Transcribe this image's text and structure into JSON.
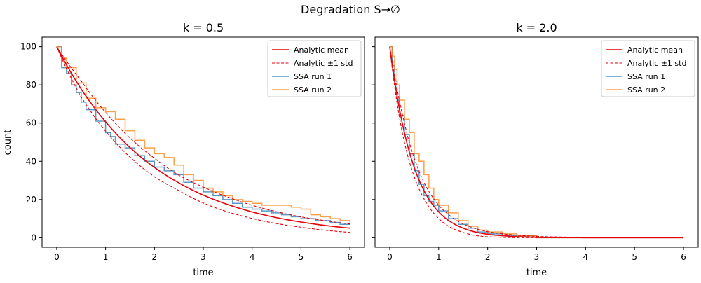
{
  "figure": {
    "suptitle": "Degradation S→∅"
  },
  "chart_data": [
    {
      "type": "line",
      "title": "k = 0.5",
      "k": 0.5,
      "xlabel": "time",
      "ylabel": "count",
      "xlim": [
        -0.3,
        6.3
      ],
      "ylim": [
        -5,
        105
      ],
      "xticks": [
        0,
        1,
        2,
        3,
        4,
        5,
        6
      ],
      "yticks": [
        0,
        20,
        40,
        60,
        80,
        100
      ],
      "legend": {
        "placement": "upper right",
        "entries": [
          "Analytic mean",
          "Analytic ±1 std",
          "SSA run 1",
          "SSA run 2"
        ]
      },
      "series": [
        {
          "name": "Analytic mean",
          "kind": "analytic-mean",
          "x": [
            0,
            0.5,
            1,
            1.5,
            2,
            2.5,
            3,
            3.5,
            4,
            4.5,
            5,
            5.5,
            6
          ],
          "values": [
            100,
            77.9,
            60.7,
            47.2,
            36.8,
            28.7,
            22.3,
            17.4,
            13.5,
            10.5,
            8.2,
            6.4,
            5.0
          ]
        },
        {
          "name": "Analytic ±1 std",
          "kind": "analytic-std-upper",
          "x": [
            0,
            0.5,
            1,
            1.5,
            2,
            2.5,
            3,
            3.5,
            4,
            4.5,
            5,
            5.5,
            6
          ],
          "values": [
            100,
            82.1,
            65.6,
            52.2,
            41.6,
            32.7,
            26.5,
            21.3,
            17.0,
            13.6,
            10.9,
            8.9,
            7.2
          ]
        },
        {
          "name": "Analytic ±1 std",
          "kind": "analytic-std-lower",
          "x": [
            0,
            0.5,
            1,
            1.5,
            2,
            2.5,
            3,
            3.5,
            4,
            4.5,
            5,
            5.5,
            6
          ],
          "values": [
            100,
            73.7,
            55.8,
            42.2,
            31.9,
            24.7,
            18.2,
            13.5,
            10.1,
            7.4,
            5.5,
            3.9,
            2.8
          ]
        },
        {
          "name": "SSA run 1",
          "kind": "ssa-1",
          "x": [
            0,
            0.1,
            0.2,
            0.3,
            0.4,
            0.5,
            0.6,
            0.8,
            1.0,
            1.1,
            1.2,
            1.4,
            1.6,
            1.8,
            2.0,
            2.2,
            2.4,
            2.6,
            2.8,
            3.0,
            3.2,
            3.4,
            3.6,
            3.8,
            4.0,
            4.2,
            4.4,
            4.6,
            4.8,
            5.0,
            5.3,
            5.6,
            5.8,
            6.0
          ],
          "values": [
            100,
            89,
            86,
            80,
            76,
            71,
            67,
            61,
            55,
            53,
            49,
            47,
            43,
            40,
            37,
            35,
            33,
            29,
            26,
            24,
            22,
            20,
            18,
            16,
            15,
            14,
            13,
            12,
            11,
            10,
            9,
            8,
            7,
            7
          ]
        },
        {
          "name": "SSA run 2",
          "kind": "ssa-2",
          "x": [
            0,
            0.1,
            0.2,
            0.4,
            0.6,
            0.8,
            1.0,
            1.2,
            1.4,
            1.6,
            1.8,
            2.0,
            2.2,
            2.4,
            2.6,
            2.8,
            3.0,
            3.2,
            3.4,
            3.6,
            3.8,
            4.0,
            4.2,
            4.4,
            4.6,
            4.8,
            5.0,
            5.2,
            5.4,
            5.6,
            5.8,
            6.0
          ],
          "values": [
            100,
            94,
            89,
            81,
            73,
            68,
            66,
            62,
            56,
            51,
            47,
            44,
            42,
            38,
            33,
            30,
            26,
            24,
            22,
            20,
            19,
            18,
            17,
            17,
            17,
            16,
            15,
            12,
            11,
            10,
            9,
            8
          ]
        }
      ]
    },
    {
      "type": "line",
      "title": "k = 2.0",
      "k": 2.0,
      "xlabel": "time",
      "ylabel": "",
      "xlim": [
        -0.3,
        6.3
      ],
      "ylim": [
        -5,
        105
      ],
      "xticks": [
        0,
        1,
        2,
        3,
        4,
        5,
        6
      ],
      "yticks": [
        0,
        20,
        40,
        60,
        80,
        100
      ],
      "shared_y": true,
      "legend": {
        "placement": "upper right",
        "entries": [
          "Analytic mean",
          "Analytic ±1 std",
          "SSA run 1",
          "SSA run 2"
        ]
      },
      "series": [
        {
          "name": "Analytic mean",
          "kind": "analytic-mean",
          "x": [
            0,
            0.25,
            0.5,
            0.75,
            1.0,
            1.25,
            1.5,
            2.0,
            2.5,
            3.0,
            4.0,
            5.0,
            6.0
          ],
          "values": [
            100,
            60.7,
            36.8,
            22.3,
            13.5,
            8.2,
            5.0,
            1.8,
            0.7,
            0.2,
            0.03,
            0,
            0
          ]
        },
        {
          "name": "Analytic ±1 std",
          "kind": "analytic-std-upper",
          "x": [
            0,
            0.25,
            0.5,
            0.75,
            1.0,
            1.25,
            1.5,
            2.0,
            2.5,
            3.0,
            4.0,
            5.0,
            6.0
          ],
          "values": [
            100,
            65.6,
            41.6,
            26.5,
            17.0,
            11.1,
            7.2,
            3.2,
            1.5,
            0.7,
            0.2,
            0,
            0
          ]
        },
        {
          "name": "Analytic ±1 std",
          "kind": "analytic-std-lower",
          "x": [
            0,
            0.25,
            0.5,
            0.75,
            1.0,
            1.25,
            1.5,
            2.0,
            2.5,
            3.0,
            4.0,
            5.0,
            6.0
          ],
          "values": [
            100,
            55.8,
            31.9,
            18.2,
            10.1,
            5.3,
            2.8,
            0.5,
            0,
            0,
            0,
            0,
            0
          ]
        },
        {
          "name": "SSA run 1",
          "kind": "ssa-1",
          "x": [
            0,
            0.05,
            0.1,
            0.15,
            0.2,
            0.3,
            0.4,
            0.5,
            0.6,
            0.7,
            0.8,
            0.9,
            1.0,
            1.2,
            1.4,
            1.6,
            1.8,
            2.0,
            2.3,
            2.6,
            3.0,
            6.0
          ],
          "values": [
            100,
            90,
            82,
            72,
            64,
            54,
            44,
            35,
            28,
            22,
            19,
            17,
            14,
            10,
            7,
            5,
            3,
            2,
            1,
            1,
            0,
            0
          ]
        },
        {
          "name": "SSA run 2",
          "kind": "ssa-2",
          "x": [
            0,
            0.05,
            0.1,
            0.15,
            0.2,
            0.3,
            0.4,
            0.5,
            0.6,
            0.7,
            0.8,
            0.9,
            1.0,
            1.2,
            1.4,
            1.6,
            1.8,
            2.0,
            2.3,
            2.6,
            3.0,
            6.0
          ],
          "values": [
            100,
            95,
            88,
            80,
            72,
            62,
            55,
            44,
            40,
            33,
            26,
            20,
            17,
            13,
            9,
            6,
            4,
            3,
            2,
            1,
            0,
            0
          ]
        }
      ]
    }
  ],
  "colors": {
    "analytic": "#e8000b",
    "ssa_1": "#1f77b4",
    "ssa_2": "#ff7f0e",
    "axes": "#000000",
    "legend_border": "#cccccc"
  }
}
